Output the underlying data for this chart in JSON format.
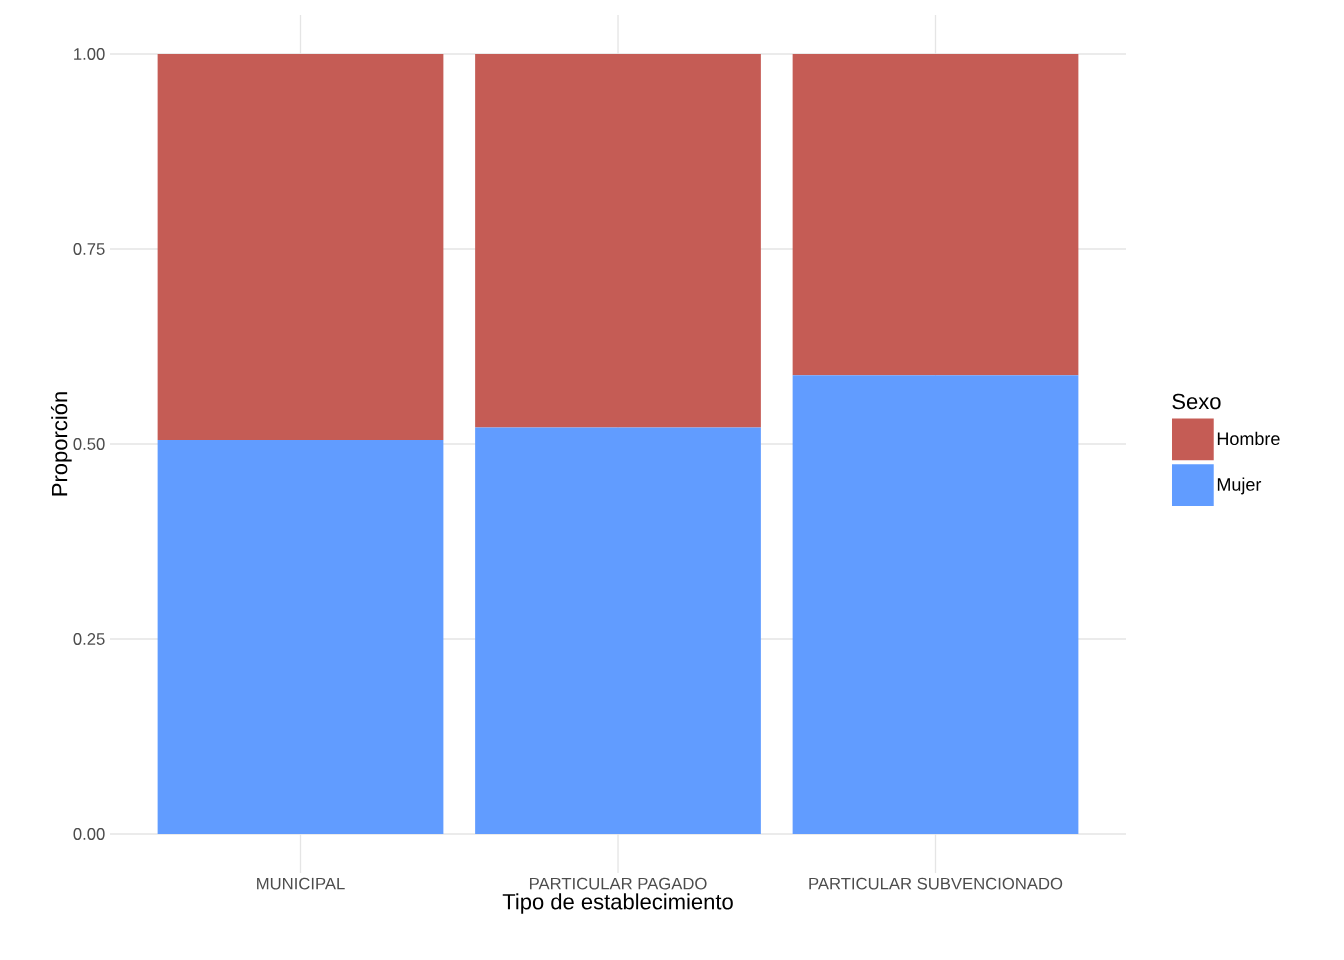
{
  "chart_data": {
    "type": "bar",
    "stacked": true,
    "xlabel": "Tipo de establecimiento",
    "ylabel": "Proporción",
    "legend_title": "Sexo",
    "categories": [
      "MUNICIPAL",
      "PARTICULAR PAGADO",
      "PARTICULAR SUBVENCIONADO"
    ],
    "series": [
      {
        "name": "Mujer",
        "color": "#619cff",
        "values": [
          0.505,
          0.521,
          0.588
        ]
      },
      {
        "name": "Hombre",
        "color": "#c55c55",
        "values": [
          0.495,
          0.479,
          0.412
        ]
      }
    ],
    "ylim": [
      -0.05,
      1.05
    ],
    "yticks": [
      {
        "value": 0,
        "label": "0.00"
      },
      {
        "value": 0.25,
        "label": "0.25"
      },
      {
        "value": 0.5,
        "label": "0.50"
      },
      {
        "value": 0.75,
        "label": "0.75"
      },
      {
        "value": 1,
        "label": "1.00"
      }
    ],
    "grid": true,
    "legend": "right"
  }
}
